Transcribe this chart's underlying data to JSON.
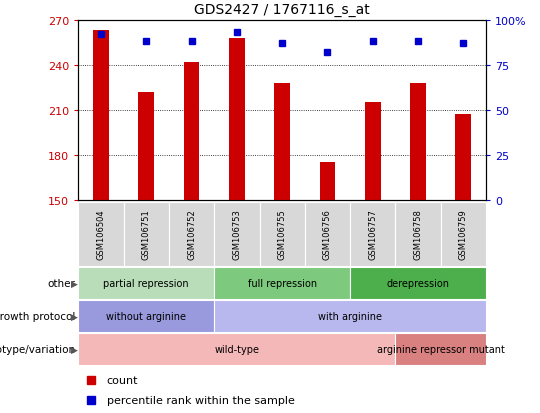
{
  "title": "GDS2427 / 1767116_s_at",
  "samples": [
    "GSM106504",
    "GSM106751",
    "GSM106752",
    "GSM106753",
    "GSM106755",
    "GSM106756",
    "GSM106757",
    "GSM106758",
    "GSM106759"
  ],
  "counts": [
    263,
    222,
    242,
    258,
    228,
    175,
    215,
    228,
    207
  ],
  "percentiles": [
    92,
    88,
    88,
    93,
    87,
    82,
    88,
    88,
    87
  ],
  "ylim_left": [
    150,
    270
  ],
  "ylim_right": [
    0,
    100
  ],
  "yticks_left": [
    150,
    180,
    210,
    240,
    270
  ],
  "yticks_right": [
    0,
    25,
    50,
    75,
    100
  ],
  "bar_color": "#cc0000",
  "dot_color": "#0000cc",
  "annotation_rows": [
    {
      "label": "other",
      "segments": [
        {
          "text": "partial repression",
          "start": 0,
          "end": 3,
          "color": "#b8ddb8"
        },
        {
          "text": "full repression",
          "start": 3,
          "end": 6,
          "color": "#7dc97d"
        },
        {
          "text": "derepression",
          "start": 6,
          "end": 9,
          "color": "#4caf4c"
        }
      ]
    },
    {
      "label": "growth protocol",
      "segments": [
        {
          "text": "without arginine",
          "start": 0,
          "end": 3,
          "color": "#9999dd"
        },
        {
          "text": "with arginine",
          "start": 3,
          "end": 9,
          "color": "#b8b8ee"
        }
      ]
    },
    {
      "label": "genotype/variation",
      "segments": [
        {
          "text": "wild-type",
          "start": 0,
          "end": 7,
          "color": "#f4b8b8"
        },
        {
          "text": "arginine repressor mutant",
          "start": 7,
          "end": 9,
          "color": "#d98080"
        }
      ]
    }
  ],
  "legend_items": [
    {
      "color": "#cc0000",
      "label": "count"
    },
    {
      "color": "#0000cc",
      "label": "percentile rank within the sample"
    }
  ]
}
